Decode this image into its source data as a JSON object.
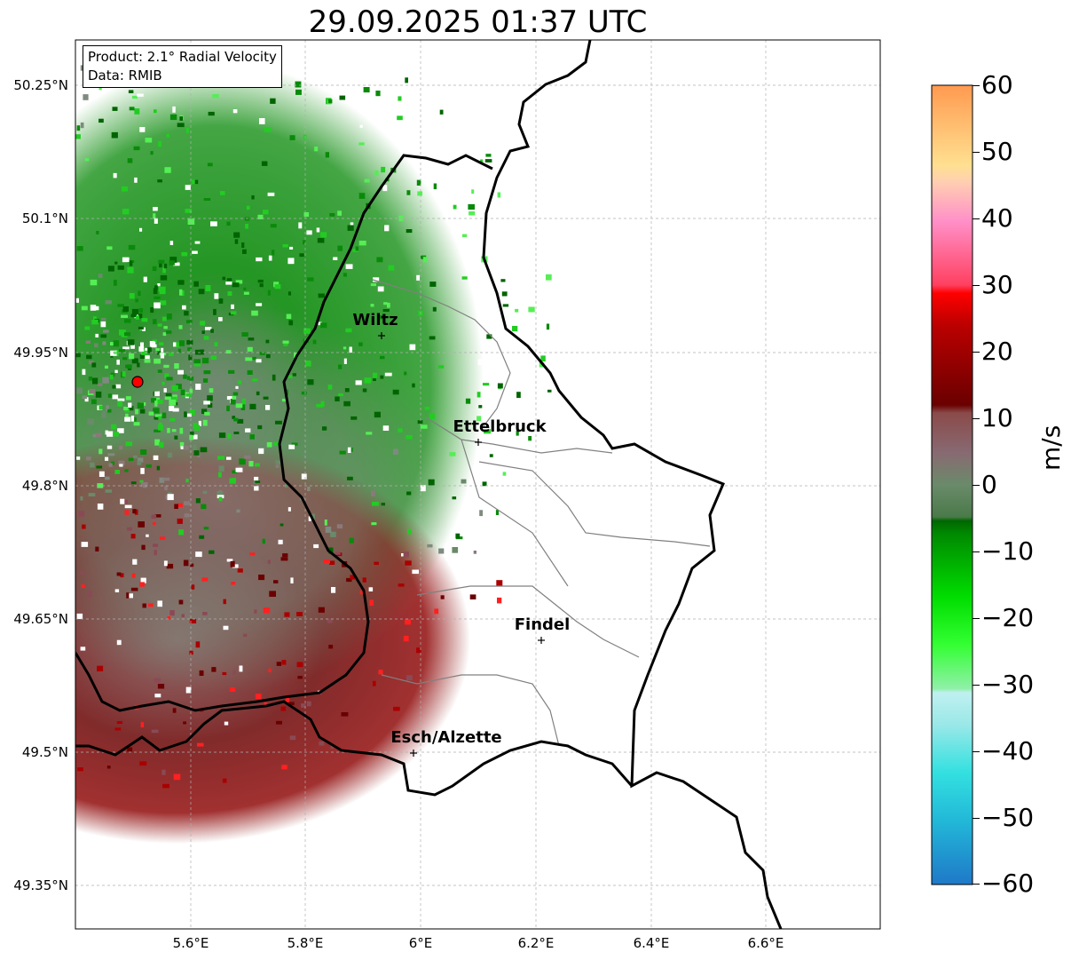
{
  "title": "29.09.2025 01:37 UTC",
  "info_box": {
    "product": "Product: 2.1° Radial Velocity",
    "data_source": "Data: RMIB"
  },
  "axes": {
    "lat_labels": [
      "50.25°N",
      "50.1°N",
      "49.95°N",
      "49.8°N",
      "49.65°N",
      "49.5°N",
      "49.35°N"
    ],
    "lon_labels": [
      "5.6°E",
      "5.8°E",
      "6°E",
      "6.2°E",
      "6.4°E",
      "6.6°E"
    ]
  },
  "cities": [
    {
      "name": "Wiltz"
    },
    {
      "name": "Ettelbruck"
    },
    {
      "name": "Findel"
    },
    {
      "name": "Esch/Alzette"
    }
  ],
  "radar_site": {
    "color": "#ff0000"
  },
  "colorbar": {
    "unit": "m/s",
    "min": -60,
    "max": 60,
    "tick_labels": [
      "60",
      "50",
      "40",
      "30",
      "20",
      "10",
      "0",
      "−10",
      "−20",
      "−30",
      "−40",
      "−50",
      "−60"
    ]
  },
  "colors": {
    "approaching_green": "#0a8a0a",
    "receding_red": "#8b0000",
    "neutral_gray": "#7f8a7f",
    "border": "#000000"
  }
}
